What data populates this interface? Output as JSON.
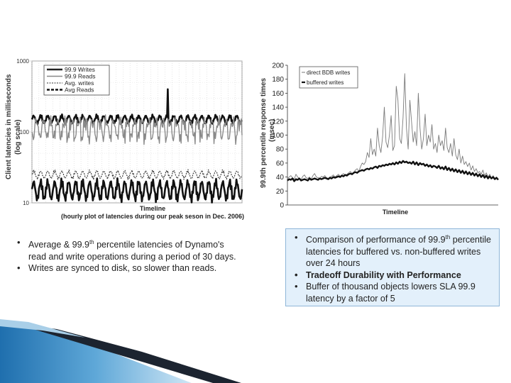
{
  "chart_data": [
    {
      "type": "line",
      "xlabel": "Timeline",
      "xlabel_sub": "(hourly plot of latencies during our peak seson in Dec. 2006)",
      "ylabel": "Client latencies in milliseconds",
      "ylabel_sub": "(log scale)",
      "y_scale": "log",
      "ylim": [
        10,
        1000
      ],
      "y_ticks": [
        "1000",
        "100",
        "10"
      ],
      "legend_position": "top-left",
      "grid": true,
      "series": [
        {
          "name": "99.9 Writes",
          "style": "thick-dark",
          "level": 150,
          "amplitude": 0.05,
          "period_days": 1
        },
        {
          "name": "99.9 Reads",
          "style": "gray",
          "level": 120,
          "amplitude": 0.15,
          "period_days": 1
        },
        {
          "name": "Avg. writes",
          "style": "dotted",
          "level": 25,
          "amplitude": 0.05,
          "period_days": 1
        },
        {
          "name": "Avg Reads",
          "style": "thick-dark",
          "level": 15,
          "amplitude": 0.12,
          "period_days": 1
        }
      ]
    },
    {
      "type": "line",
      "xlabel": "Timeline",
      "ylabel": "99.9th percentile response times",
      "ylabel_sub": "(msec)",
      "ylim": [
        0,
        200
      ],
      "y_ticks": [
        0,
        20,
        40,
        60,
        80,
        100,
        120,
        140,
        160,
        180,
        200
      ],
      "legend_position": "top-left",
      "grid": false,
      "series": [
        {
          "name": "direct BDB writes",
          "style": "thin-gray",
          "values": [
            38,
            40,
            42,
            39,
            37,
            44,
            40,
            38,
            36,
            41,
            43,
            39,
            38,
            40,
            37,
            42,
            45,
            40,
            39,
            38,
            41,
            40,
            42,
            39,
            38,
            40,
            41,
            43,
            40,
            42,
            44,
            41,
            43,
            45,
            42,
            44,
            46,
            48,
            45,
            47,
            50,
            52,
            48,
            55,
            60,
            58,
            62,
            75,
            68,
            95,
            72,
            80,
            70,
            110,
            85,
            75,
            98,
            140,
            90,
            82,
            100,
            128,
            78,
            85,
            170,
            150,
            95,
            88,
            125,
            188,
            110,
            80,
            150,
            120,
            90,
            105,
            85,
            160,
            110,
            80,
            95,
            130,
            85,
            100,
            90,
            115,
            80,
            88,
            75,
            100,
            85,
            92,
            78,
            110,
            82,
            75,
            88,
            70,
            95,
            72,
            65,
            80,
            60,
            70,
            58,
            62,
            55,
            60,
            50,
            56,
            48,
            52,
            46,
            48,
            44,
            50,
            42,
            46,
            40,
            44,
            38,
            42,
            38,
            40,
            37
          ]
        },
        {
          "name": "buffered writes",
          "style": "thick-black",
          "values": [
            35,
            37,
            36,
            38,
            34,
            37,
            36,
            38,
            35,
            36,
            37,
            36,
            35,
            38,
            36,
            37,
            38,
            37,
            36,
            38,
            37,
            38,
            39,
            38,
            37,
            39,
            38,
            40,
            39,
            40,
            41,
            40,
            42,
            41,
            43,
            42,
            44,
            45,
            44,
            46,
            47,
            46,
            48,
            49,
            50,
            49,
            51,
            52,
            51,
            53,
            52,
            54,
            55,
            53,
            56,
            55,
            57,
            56,
            58,
            57,
            59,
            58,
            60,
            58,
            61,
            59,
            62,
            60,
            63,
            61,
            62,
            60,
            61,
            59,
            62,
            58,
            61,
            57,
            60,
            58,
            59,
            56,
            58,
            55,
            57,
            54,
            56,
            55,
            53,
            56,
            52,
            54,
            51,
            55,
            50,
            53,
            49,
            52,
            48,
            51,
            47,
            50,
            46,
            49,
            45,
            48,
            44,
            47,
            43,
            46,
            42,
            45,
            41,
            44,
            40,
            43,
            39,
            42,
            38,
            41,
            38,
            40,
            37,
            39,
            36
          ]
        }
      ]
    }
  ],
  "bullets_left": [
    {
      "text_pre": "Average & 99.9",
      "sup": "th",
      "text_post": " percentile latencies of Dynamo's read and write operations during a period of 30 days."
    },
    {
      "text": "Writes are synced to disk, so slower than reads."
    }
  ],
  "bullets_right": [
    {
      "text_pre": "Comparison of performance of 99.9",
      "sup": "th",
      "text_post": " percentile latencies for buffered vs. non-buffered writes over 24 hours"
    },
    {
      "text": "Tradeoff Durability with Performance",
      "bold": true
    },
    {
      "text": "Buffer of thousand objects lowers SLA 99.9 latency by a factor of 5"
    }
  ]
}
